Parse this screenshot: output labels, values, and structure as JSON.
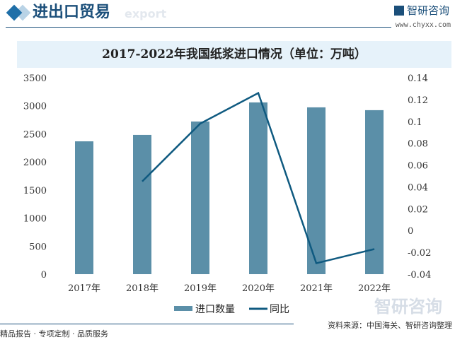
{
  "header": {
    "title": "进出口贸易",
    "watermark": "export",
    "brand": "智研咨询",
    "url": "www.chyxx.com"
  },
  "footer": {
    "left": "精品报告 · 专项定制 · 品质服务",
    "source": "资料来源：中国海关、智研咨询整理",
    "brand": "智研咨询"
  },
  "colors": {
    "bar": "#5b8fa8",
    "line": "#0f5a80",
    "accent": "#1f6fa8"
  },
  "chart_data": {
    "type": "bar+line",
    "title": "2017-2022年我国纸浆进口情况（单位：万吨）",
    "categories": [
      "2017年",
      "2018年",
      "2019年",
      "2020年",
      "2021年",
      "2022年"
    ],
    "series": [
      {
        "name": "进口数量",
        "type": "bar",
        "axis": "left",
        "values": [
          2367,
          2481,
          2720,
          3060,
          2972,
          2922
        ]
      },
      {
        "name": "同比",
        "type": "line",
        "axis": "right",
        "values": [
          null,
          0.045,
          0.098,
          0.126,
          -0.03,
          -0.017
        ]
      }
    ],
    "ylim_left": [
      0,
      3500
    ],
    "yticks_left": [
      "0",
      "500",
      "1000",
      "1500",
      "2000",
      "2500",
      "3000",
      "3500"
    ],
    "ylim_right": [
      -0.04,
      0.14
    ],
    "yticks_right": [
      "-0.04",
      "-0.02",
      "0",
      "0.02",
      "0.04",
      "0.06",
      "0.08",
      "0.1",
      "0.12",
      "0.14"
    ],
    "legend": "bottom",
    "grid": false
  }
}
